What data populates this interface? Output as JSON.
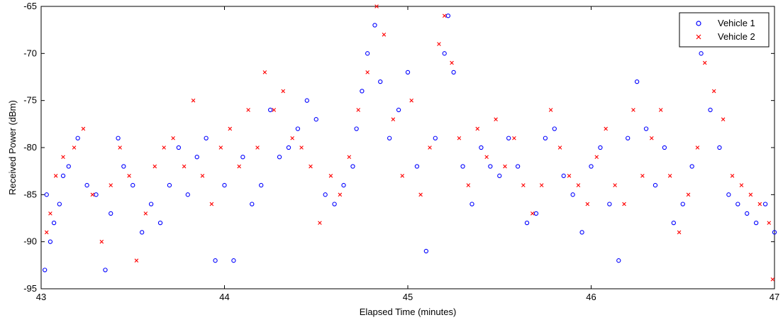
{
  "chart_data": {
    "type": "scatter",
    "xlabel": "Elapsed Time (minutes)",
    "ylabel": "Received Power (dBm)",
    "xlim": [
      43,
      47
    ],
    "ylim": [
      -95,
      -65
    ],
    "xticks": [
      "43",
      "44",
      "45",
      "46",
      "47"
    ],
    "yticks": [
      "-65",
      "-70",
      "-75",
      "-80",
      "-85",
      "-90",
      "-95"
    ],
    "grid": false,
    "legend_position": "top-right",
    "series": [
      {
        "name": "Vehicle 1",
        "marker": "circle",
        "color": "#0000ff",
        "points": [
          [
            43.02,
            -93
          ],
          [
            43.03,
            -85
          ],
          [
            43.05,
            -90
          ],
          [
            43.07,
            -88
          ],
          [
            43.1,
            -86
          ],
          [
            43.12,
            -83
          ],
          [
            43.15,
            -82
          ],
          [
            43.2,
            -79
          ],
          [
            43.25,
            -84
          ],
          [
            43.3,
            -85
          ],
          [
            43.35,
            -93
          ],
          [
            43.38,
            -87
          ],
          [
            43.42,
            -79
          ],
          [
            43.45,
            -82
          ],
          [
            43.5,
            -84
          ],
          [
            43.55,
            -89
          ],
          [
            43.6,
            -86
          ],
          [
            43.65,
            -88
          ],
          [
            43.7,
            -84
          ],
          [
            43.75,
            -80
          ],
          [
            43.8,
            -85
          ],
          [
            43.85,
            -81
          ],
          [
            43.9,
            -79
          ],
          [
            43.95,
            -92
          ],
          [
            44.0,
            -84
          ],
          [
            44.05,
            -92
          ],
          [
            44.1,
            -81
          ],
          [
            44.15,
            -86
          ],
          [
            44.2,
            -84
          ],
          [
            44.25,
            -76
          ],
          [
            44.3,
            -81
          ],
          [
            44.35,
            -80
          ],
          [
            44.4,
            -78
          ],
          [
            44.45,
            -75
          ],
          [
            44.5,
            -77
          ],
          [
            44.55,
            -85
          ],
          [
            44.6,
            -86
          ],
          [
            44.65,
            -84
          ],
          [
            44.7,
            -82
          ],
          [
            44.72,
            -78
          ],
          [
            44.75,
            -74
          ],
          [
            44.78,
            -70
          ],
          [
            44.82,
            -67
          ],
          [
            44.85,
            -73
          ],
          [
            44.9,
            -79
          ],
          [
            44.95,
            -76
          ],
          [
            45.0,
            -72
          ],
          [
            45.05,
            -82
          ],
          [
            45.1,
            -91
          ],
          [
            45.15,
            -79
          ],
          [
            45.2,
            -70
          ],
          [
            45.22,
            -66
          ],
          [
            45.25,
            -72
          ],
          [
            45.3,
            -82
          ],
          [
            45.35,
            -86
          ],
          [
            45.4,
            -80
          ],
          [
            45.45,
            -82
          ],
          [
            45.5,
            -83
          ],
          [
            45.55,
            -79
          ],
          [
            45.6,
            -82
          ],
          [
            45.65,
            -88
          ],
          [
            45.7,
            -87
          ],
          [
            45.75,
            -79
          ],
          [
            45.8,
            -78
          ],
          [
            45.85,
            -83
          ],
          [
            45.9,
            -85
          ],
          [
            45.95,
            -89
          ],
          [
            46.0,
            -82
          ],
          [
            46.05,
            -80
          ],
          [
            46.1,
            -86
          ],
          [
            46.15,
            -92
          ],
          [
            46.2,
            -79
          ],
          [
            46.25,
            -73
          ],
          [
            46.3,
            -78
          ],
          [
            46.35,
            -84
          ],
          [
            46.4,
            -80
          ],
          [
            46.45,
            -88
          ],
          [
            46.5,
            -86
          ],
          [
            46.55,
            -82
          ],
          [
            46.6,
            -70
          ],
          [
            46.65,
            -76
          ],
          [
            46.7,
            -80
          ],
          [
            46.75,
            -85
          ],
          [
            46.8,
            -86
          ],
          [
            46.85,
            -87
          ],
          [
            46.9,
            -88
          ],
          [
            46.95,
            -86
          ],
          [
            47.0,
            -89
          ]
        ]
      },
      {
        "name": "Vehicle 2",
        "marker": "x",
        "color": "#ff0000",
        "points": [
          [
            43.03,
            -89
          ],
          [
            43.05,
            -87
          ],
          [
            43.08,
            -83
          ],
          [
            43.12,
            -81
          ],
          [
            43.18,
            -80
          ],
          [
            43.23,
            -78
          ],
          [
            43.28,
            -85
          ],
          [
            43.33,
            -90
          ],
          [
            43.38,
            -84
          ],
          [
            43.43,
            -80
          ],
          [
            43.48,
            -83
          ],
          [
            43.52,
            -92
          ],
          [
            43.57,
            -87
          ],
          [
            43.62,
            -82
          ],
          [
            43.67,
            -80
          ],
          [
            43.72,
            -79
          ],
          [
            43.78,
            -82
          ],
          [
            43.83,
            -75
          ],
          [
            43.88,
            -83
          ],
          [
            43.93,
            -86
          ],
          [
            43.98,
            -80
          ],
          [
            44.03,
            -78
          ],
          [
            44.08,
            -82
          ],
          [
            44.13,
            -76
          ],
          [
            44.18,
            -80
          ],
          [
            44.22,
            -72
          ],
          [
            44.27,
            -76
          ],
          [
            44.32,
            -74
          ],
          [
            44.37,
            -79
          ],
          [
            44.42,
            -80
          ],
          [
            44.47,
            -82
          ],
          [
            44.52,
            -88
          ],
          [
            44.58,
            -83
          ],
          [
            44.63,
            -85
          ],
          [
            44.68,
            -81
          ],
          [
            44.73,
            -76
          ],
          [
            44.78,
            -72
          ],
          [
            44.83,
            -65
          ],
          [
            44.87,
            -68
          ],
          [
            44.92,
            -77
          ],
          [
            44.97,
            -83
          ],
          [
            45.02,
            -75
          ],
          [
            45.07,
            -85
          ],
          [
            45.12,
            -80
          ],
          [
            45.17,
            -69
          ],
          [
            45.2,
            -66
          ],
          [
            45.24,
            -71
          ],
          [
            45.28,
            -79
          ],
          [
            45.33,
            -84
          ],
          [
            45.38,
            -78
          ],
          [
            45.43,
            -81
          ],
          [
            45.48,
            -77
          ],
          [
            45.53,
            -82
          ],
          [
            45.58,
            -79
          ],
          [
            45.63,
            -84
          ],
          [
            45.68,
            -87
          ],
          [
            45.73,
            -84
          ],
          [
            45.78,
            -76
          ],
          [
            45.83,
            -80
          ],
          [
            45.88,
            -83
          ],
          [
            45.93,
            -84
          ],
          [
            45.98,
            -86
          ],
          [
            46.03,
            -81
          ],
          [
            46.08,
            -78
          ],
          [
            46.13,
            -84
          ],
          [
            46.18,
            -86
          ],
          [
            46.23,
            -76
          ],
          [
            46.28,
            -83
          ],
          [
            46.33,
            -79
          ],
          [
            46.38,
            -76
          ],
          [
            46.43,
            -83
          ],
          [
            46.48,
            -89
          ],
          [
            46.53,
            -85
          ],
          [
            46.58,
            -80
          ],
          [
            46.62,
            -71
          ],
          [
            46.67,
            -74
          ],
          [
            46.72,
            -77
          ],
          [
            46.77,
            -83
          ],
          [
            46.82,
            -84
          ],
          [
            46.87,
            -85
          ],
          [
            46.92,
            -86
          ],
          [
            46.97,
            -88
          ],
          [
            46.99,
            -94
          ]
        ]
      }
    ]
  }
}
